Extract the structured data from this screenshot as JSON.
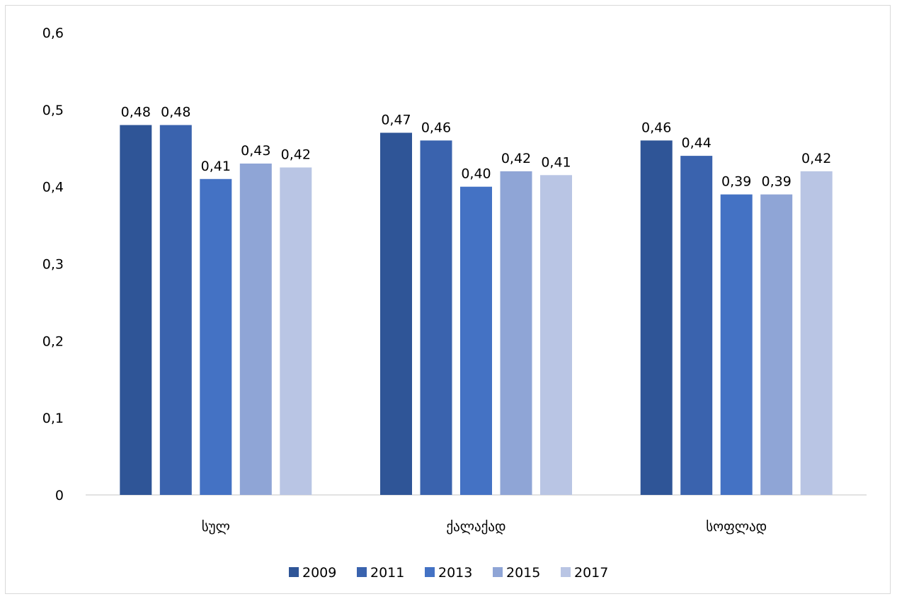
{
  "chart_data": {
    "type": "bar",
    "categories": [
      "სულ",
      "ქალაქად",
      "სოფლად"
    ],
    "series": [
      {
        "name": "2009",
        "values": [
          0.48,
          0.47,
          0.46
        ],
        "labels": [
          "0,48",
          "0,47",
          "0,46"
        ],
        "color": "#2f5597"
      },
      {
        "name": "2011",
        "values": [
          0.48,
          0.46,
          0.44
        ],
        "labels": [
          "0,48",
          "0,46",
          "0,44"
        ],
        "color": "#3a63ae"
      },
      {
        "name": "2013",
        "values": [
          0.41,
          0.4,
          0.39
        ],
        "labels": [
          "0,41",
          "0,40",
          "0,39"
        ],
        "color": "#4472c4"
      },
      {
        "name": "2015",
        "values": [
          0.43,
          0.42,
          0.39
        ],
        "labels": [
          "0,43",
          "0,42",
          "0,39"
        ],
        "color": "#8fa5d6"
      },
      {
        "name": "2017",
        "values": [
          0.425,
          0.415,
          0.42
        ],
        "labels": [
          "0,42",
          "0,41",
          "0,42"
        ],
        "color": "#b9c5e4"
      }
    ],
    "yticks": [
      0,
      0.1,
      0.2,
      0.3,
      0.4,
      0.5,
      0.6
    ],
    "ytick_labels": [
      "0",
      "0,1",
      "0,2",
      "0,3",
      "0,4",
      "0,5",
      "0,6"
    ],
    "ylim": [
      0,
      0.6
    ],
    "title": "",
    "xlabel": "",
    "ylabel": "",
    "grid": false,
    "legend_position": "bottom"
  }
}
